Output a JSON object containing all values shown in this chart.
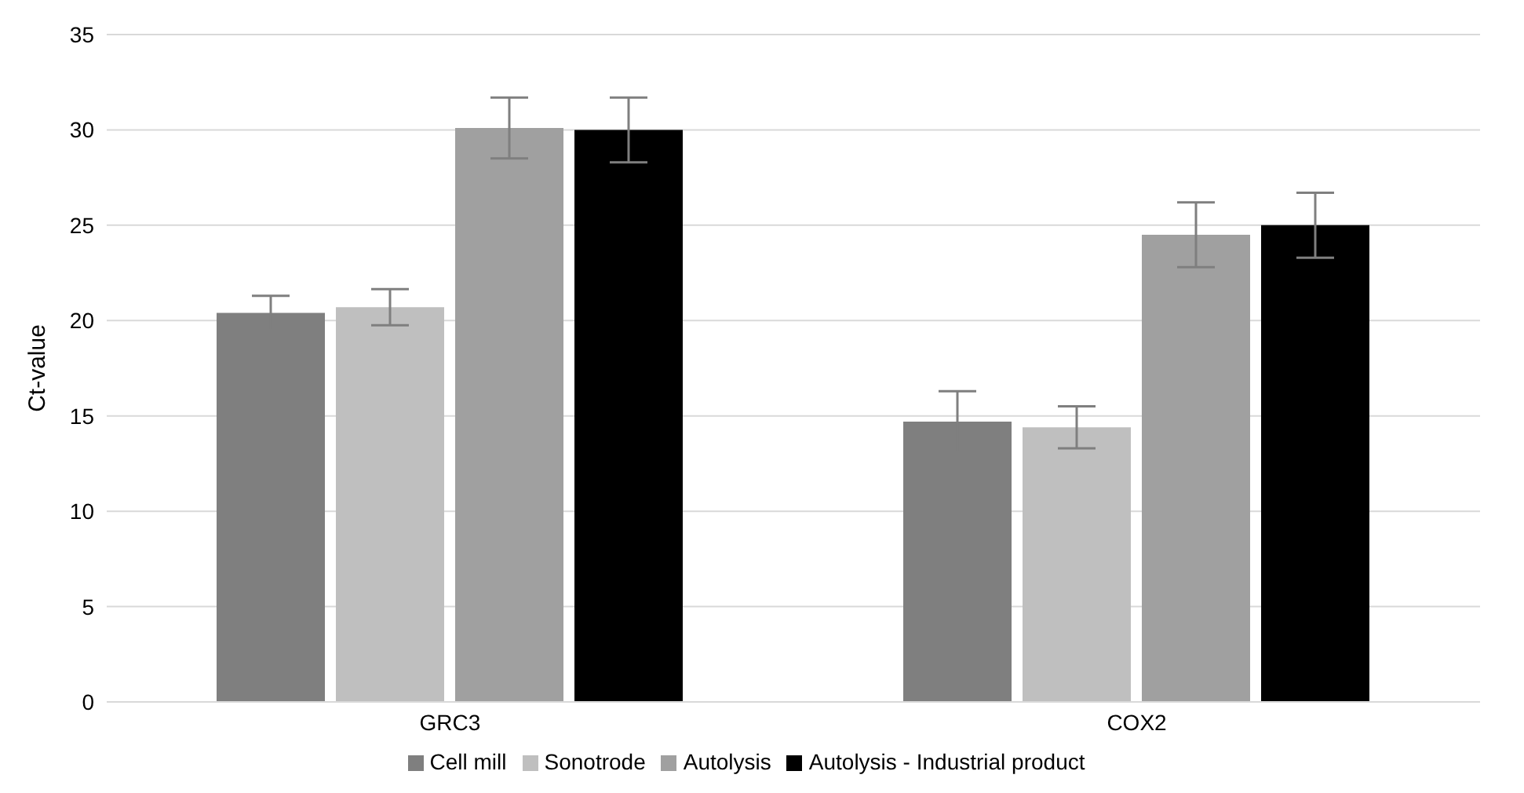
{
  "chart_data": {
    "type": "bar",
    "ylabel": "Ct-value",
    "categories": [
      "GRC3",
      "COX2"
    ],
    "series": [
      {
        "name": "Cell mill",
        "color": "#7f7f7f",
        "values": [
          20.4,
          14.7
        ],
        "errors": [
          0.9,
          1.6
        ]
      },
      {
        "name": "Sonotrode",
        "color": "#bfbfbf",
        "values": [
          20.7,
          14.4
        ],
        "errors": [
          0.95,
          1.1
        ]
      },
      {
        "name": "Autolysis",
        "color": "#a0a0a0",
        "values": [
          30.1,
          24.5
        ],
        "errors": [
          1.6,
          1.7
        ]
      },
      {
        "name": "Autolysis - Industrial product",
        "color": "#000000",
        "values": [
          30.0,
          25.0
        ],
        "errors": [
          1.7,
          1.7
        ]
      }
    ],
    "ylim": [
      0,
      35
    ],
    "yticks": [
      0,
      5,
      10,
      15,
      20,
      25,
      30,
      35
    ],
    "grid": "y",
    "legend": "bottom"
  }
}
